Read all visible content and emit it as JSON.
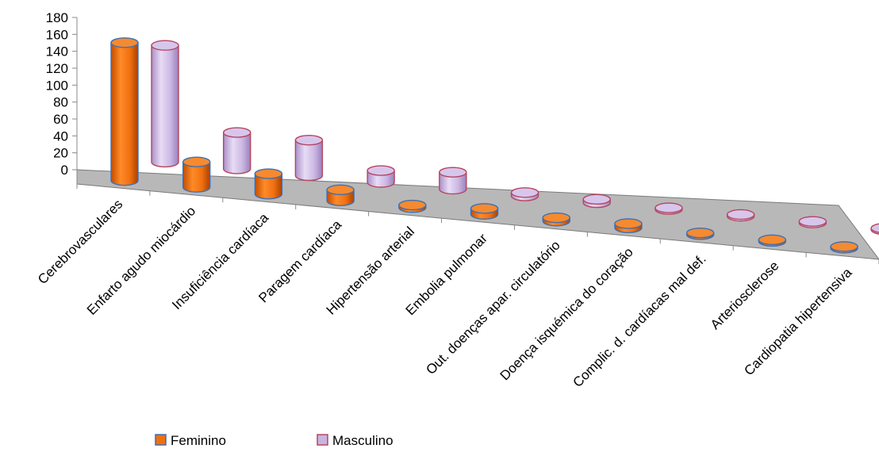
{
  "chart_data": {
    "type": "bar",
    "style": "3d-cylinder",
    "categories": [
      "Cerebrovasculares",
      "Enfarto agudo miocárdio",
      "Insuficiência cardíaca",
      "Paragem cardíaca",
      "Hipertensão arterial",
      "Embolia pulmonar",
      "Out. doenças  apar. circulatório",
      "Doença isquémica do coração",
      "Complic. d. cardíacas mal def.",
      "Arteriosclerose",
      "Cardiopatia hipertensiva"
    ],
    "series": [
      {
        "name": "Feminino",
        "color": "#f07010",
        "values": [
          163,
          30,
          24,
          13,
          3,
          7,
          4,
          5,
          2,
          1,
          1
        ]
      },
      {
        "name": "Masculino",
        "color": "#c8b4e0",
        "values": [
          138,
          43,
          42,
          14,
          20,
          4,
          4,
          1,
          2,
          1,
          1
        ]
      }
    ],
    "yticks": [
      "0",
      "20",
      "40",
      "60",
      "80",
      "100",
      "120",
      "140",
      "160",
      "180"
    ],
    "ylim": [
      0,
      180
    ],
    "grid": false,
    "legend_position": "bottom-left",
    "title": "",
    "xlabel": "",
    "ylabel": ""
  }
}
